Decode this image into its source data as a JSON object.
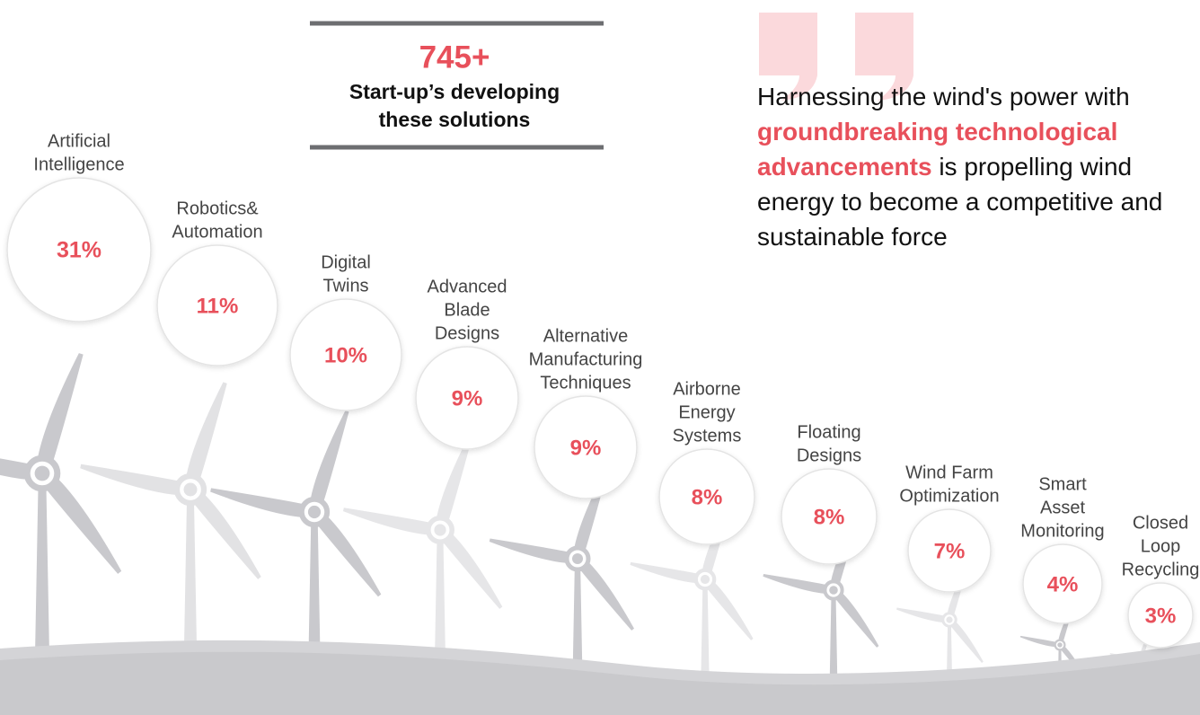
{
  "stat": {
    "value": "745+",
    "label": [
      "Start-up’s developing",
      "these solutions"
    ]
  },
  "quote": {
    "before": "Harnessing the wind's power with",
    "highlight": "groundbreaking technological advancements",
    "after": "is propelling wind energy to become a competitive and sustainable force"
  },
  "items": [
    {
      "label": [
        "Artificial",
        "Intelligence"
      ],
      "value": "31%"
    },
    {
      "label": [
        "Robotics&",
        "Automation"
      ],
      "value": "11%"
    },
    {
      "label": [
        "Digital",
        "Twins"
      ],
      "value": "10%"
    },
    {
      "label": [
        "Advanced",
        "Blade",
        "Designs"
      ],
      "value": "9%"
    },
    {
      "label": [
        "Alternative",
        "Manufacturing",
        "Techniques"
      ],
      "value": "9%"
    },
    {
      "label": [
        "Airborne",
        "Energy",
        "Systems"
      ],
      "value": "8%"
    },
    {
      "label": [
        "Floating",
        "Designs"
      ],
      "value": "8%"
    },
    {
      "label": [
        "Wind Farm",
        "Optimization"
      ],
      "value": "7%"
    },
    {
      "label": [
        "Smart",
        "Asset",
        "Monitoring"
      ],
      "value": "4%"
    },
    {
      "label": [
        "Closed",
        "Loop",
        "Recycling"
      ],
      "value": "3%"
    }
  ]
}
